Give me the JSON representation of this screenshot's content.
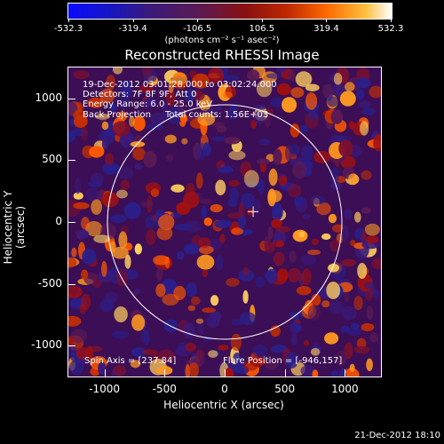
{
  "colorbar": {
    "tick_labels": [
      "-532.3",
      "-319.4",
      "-106.5",
      "106.5",
      "319.4",
      "532.3"
    ],
    "units": "(photons cm⁻² s⁻¹ asec⁻²)"
  },
  "title": "Reconstructed RHESSI Image",
  "info": {
    "time_range": "19-Dec-2012 03:01:28.000 to 03:02:24.000",
    "detectors": "Detectors: 7F 8F 9F, Att 0",
    "energy": "Energy Range: 6.0 - 25.0 keV",
    "method": "Back Projection",
    "counts": "Total counts: 1.56E+03",
    "spin_axis": "Spin Axis = [237.84]",
    "flare_position": "Flare Position = [-946,157]"
  },
  "axes": {
    "xlabel": "Heliocentric X (arcsec)",
    "ylabel": "Heliocentric Y (arcsec)",
    "xticks": [
      "-1000",
      "-500",
      "0",
      "500",
      "1000"
    ],
    "yticks": [
      "1000",
      "500",
      "0",
      "-500",
      "-1000"
    ],
    "xlim": [
      -1300,
      1300
    ],
    "ylim": [
      -1250,
      1250
    ]
  },
  "colors": {
    "background": "#000000",
    "limb": "#ffffff",
    "low": "#0a0aff",
    "mid": "#8a1010",
    "high": "#ffffff"
  },
  "solar_disk": {
    "radius_arcsec": 975,
    "center": [
      0,
      0
    ]
  },
  "marker": {
    "position_arcsec": [
      237,
      84
    ]
  },
  "timestamp": "21-Dec-2012 18:10"
}
